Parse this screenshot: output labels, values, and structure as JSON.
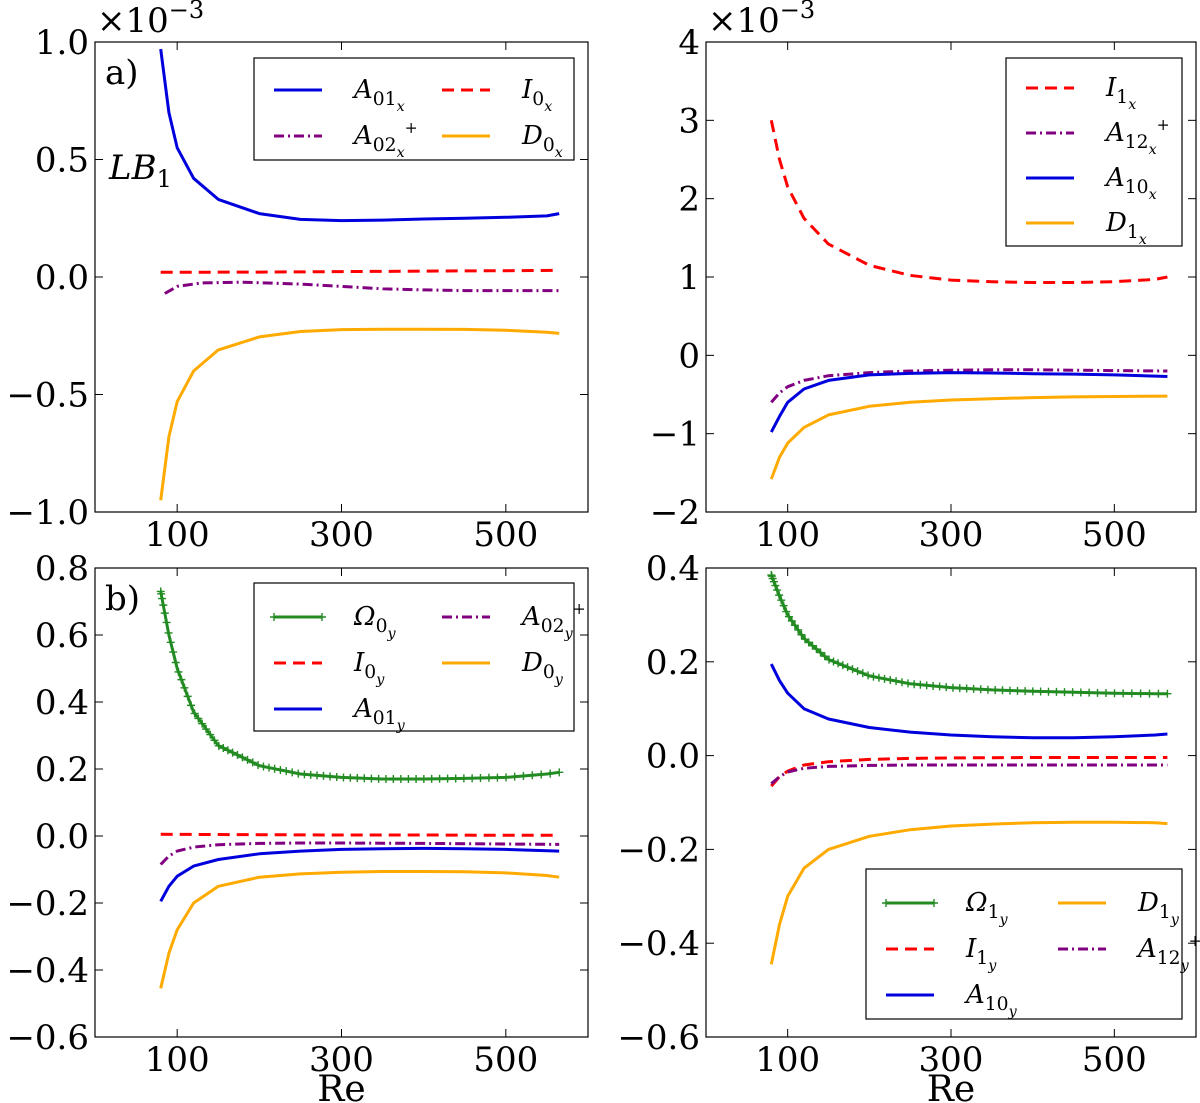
{
  "chart_data": [
    {
      "id": "top-left",
      "type": "line",
      "panel_label": "a)",
      "annotation": {
        "main": "LB",
        "sub": "1"
      },
      "multiplier": {
        "base": "×10",
        "exp": "−3"
      },
      "xlabel": "",
      "ylabel": "",
      "xlim": [
        0,
        600
      ],
      "ylim": [
        -1.0,
        1.0
      ],
      "xticks": [
        100,
        300,
        500
      ],
      "xtick_labels": [
        "100",
        "300",
        "500"
      ],
      "yticks": [
        1.0,
        0.5,
        0.0,
        -0.5,
        -1.0
      ],
      "ytick_labels": [
        "1.0",
        "0.5",
        "0.0",
        "−0.5",
        "−1.0"
      ],
      "legend_position": "top-right",
      "legend_columns": 2,
      "series": [
        {
          "key": "A01x",
          "main": "A",
          "sub": "01",
          "subsub": "x",
          "sup": "",
          "color": "#0000dd",
          "style": "solid",
          "x": [
            80,
            90,
            100,
            120,
            150,
            200,
            250,
            300,
            350,
            400,
            450,
            500,
            550,
            565
          ],
          "y": [
            0.97,
            0.7,
            0.55,
            0.42,
            0.33,
            0.27,
            0.245,
            0.24,
            0.242,
            0.247,
            0.25,
            0.254,
            0.26,
            0.27
          ]
        },
        {
          "key": "A02x",
          "main": "A",
          "sub": "02",
          "subsub": "x",
          "sup": "+",
          "color": "#800080",
          "style": "dashdot",
          "x": [
            85,
            100,
            130,
            180,
            250,
            300,
            350,
            400,
            450,
            500,
            565
          ],
          "y": [
            -0.07,
            -0.04,
            -0.025,
            -0.022,
            -0.03,
            -0.04,
            -0.05,
            -0.055,
            -0.058,
            -0.058,
            -0.058
          ]
        },
        {
          "key": "I0x",
          "main": "I",
          "sub": "0",
          "subsub": "x",
          "sup": "",
          "color": "#ff0000",
          "style": "dashed",
          "x": [
            80,
            200,
            300,
            400,
            500,
            565
          ],
          "y": [
            0.02,
            0.021,
            0.023,
            0.025,
            0.027,
            0.028
          ]
        },
        {
          "key": "D0x",
          "main": "D",
          "sub": "0",
          "subsub": "x",
          "sup": "",
          "color": "#ffaa00",
          "style": "solid",
          "x": [
            80,
            90,
            100,
            120,
            150,
            200,
            250,
            300,
            350,
            400,
            450,
            500,
            550,
            565
          ],
          "y": [
            -0.95,
            -0.68,
            -0.53,
            -0.4,
            -0.31,
            -0.255,
            -0.232,
            -0.224,
            -0.222,
            -0.222,
            -0.223,
            -0.227,
            -0.235,
            -0.24
          ]
        }
      ]
    },
    {
      "id": "top-right",
      "type": "line",
      "panel_label": "",
      "multiplier": {
        "base": "×10",
        "exp": "−3"
      },
      "xlabel": "",
      "ylabel": "",
      "xlim": [
        0,
        600
      ],
      "ylim": [
        -2,
        4
      ],
      "xticks": [
        100,
        300,
        500
      ],
      "xtick_labels": [
        "100",
        "300",
        "500"
      ],
      "yticks": [
        4,
        3,
        2,
        1,
        0,
        -1,
        -2
      ],
      "ytick_labels": [
        "4",
        "3",
        "2",
        "1",
        "0",
        "−1",
        "−2"
      ],
      "legend_position": "top-right",
      "legend_columns": 1,
      "series": [
        {
          "key": "I1x",
          "main": "I",
          "sub": "1",
          "subsub": "x",
          "sup": "",
          "color": "#ff0000",
          "style": "dashed",
          "x": [
            80,
            90,
            100,
            120,
            150,
            200,
            250,
            300,
            350,
            400,
            450,
            500,
            550,
            565
          ],
          "y": [
            3.0,
            2.5,
            2.15,
            1.75,
            1.42,
            1.15,
            1.02,
            0.96,
            0.94,
            0.93,
            0.93,
            0.94,
            0.97,
            1.0
          ]
        },
        {
          "key": "A12x",
          "main": "A",
          "sub": "12",
          "subsub": "x",
          "sup": "+",
          "color": "#800080",
          "style": "dashdot",
          "x": [
            80,
            90,
            100,
            120,
            150,
            200,
            250,
            300,
            350,
            400,
            450,
            500,
            565
          ],
          "y": [
            -0.6,
            -0.48,
            -0.4,
            -0.32,
            -0.26,
            -0.22,
            -0.2,
            -0.19,
            -0.185,
            -0.185,
            -0.19,
            -0.195,
            -0.2
          ]
        },
        {
          "key": "A10x",
          "main": "A",
          "sub": "10",
          "subsub": "x",
          "sup": "",
          "color": "#0000dd",
          "style": "solid",
          "x": [
            80,
            90,
            100,
            120,
            150,
            200,
            250,
            300,
            350,
            400,
            450,
            500,
            565
          ],
          "y": [
            -0.98,
            -0.78,
            -0.6,
            -0.43,
            -0.32,
            -0.25,
            -0.23,
            -0.22,
            -0.225,
            -0.235,
            -0.24,
            -0.25,
            -0.27
          ]
        },
        {
          "key": "D1x",
          "main": "D",
          "sub": "1",
          "subsub": "x",
          "sup": "",
          "color": "#ffaa00",
          "style": "solid",
          "x": [
            80,
            90,
            100,
            120,
            150,
            200,
            250,
            300,
            350,
            400,
            450,
            500,
            565
          ],
          "y": [
            -1.58,
            -1.3,
            -1.12,
            -0.92,
            -0.76,
            -0.65,
            -0.6,
            -0.57,
            -0.555,
            -0.54,
            -0.53,
            -0.525,
            -0.52
          ]
        }
      ]
    },
    {
      "id": "bottom-left",
      "type": "line",
      "panel_label": "b)",
      "xlabel": "Re",
      "ylabel": "",
      "xlim": [
        0,
        600
      ],
      "ylim": [
        -0.6,
        0.8
      ],
      "xticks": [
        100,
        300,
        500
      ],
      "xtick_labels": [
        "100",
        "300",
        "500"
      ],
      "yticks": [
        0.8,
        0.6,
        0.4,
        0.2,
        0.0,
        -0.2,
        -0.4,
        -0.6
      ],
      "ytick_labels": [
        "0.8",
        "0.6",
        "0.4",
        "0.2",
        "0.0",
        "−0.2",
        "−0.4",
        "−0.6"
      ],
      "legend_position": "top-right",
      "legend_columns": 2,
      "series": [
        {
          "key": "Om0y",
          "main": "Ω",
          "sub": "0",
          "subsub": "y",
          "sup": "",
          "color": "#228b22",
          "style": "solid",
          "markers": true,
          "x": [
            80,
            90,
            100,
            120,
            150,
            200,
            250,
            300,
            350,
            400,
            450,
            500,
            550,
            565
          ],
          "y": [
            0.73,
            0.6,
            0.5,
            0.37,
            0.27,
            0.21,
            0.185,
            0.175,
            0.17,
            0.17,
            0.172,
            0.175,
            0.185,
            0.19
          ]
        },
        {
          "key": "I0y",
          "main": "I",
          "sub": "0",
          "subsub": "y",
          "sup": "",
          "color": "#ff0000",
          "style": "dashed",
          "x": [
            80,
            200,
            300,
            400,
            500,
            565
          ],
          "y": [
            0.005,
            0.004,
            0.003,
            0.003,
            0.002,
            0.002
          ]
        },
        {
          "key": "A01y",
          "main": "A",
          "sub": "01",
          "subsub": "y",
          "sup": "",
          "color": "#0000dd",
          "style": "solid",
          "x": [
            80,
            90,
            100,
            120,
            150,
            200,
            250,
            300,
            350,
            400,
            450,
            500,
            565
          ],
          "y": [
            -0.195,
            -0.15,
            -0.12,
            -0.09,
            -0.07,
            -0.053,
            -0.045,
            -0.04,
            -0.038,
            -0.037,
            -0.038,
            -0.04,
            -0.045
          ]
        },
        {
          "key": "A02y",
          "main": "A",
          "sub": "02",
          "subsub": "y",
          "sup": "+",
          "color": "#800080",
          "style": "dashdot",
          "x": [
            80,
            90,
            100,
            120,
            150,
            200,
            250,
            300,
            400,
            500,
            565
          ],
          "y": [
            -0.085,
            -0.06,
            -0.045,
            -0.033,
            -0.026,
            -0.022,
            -0.021,
            -0.021,
            -0.022,
            -0.024,
            -0.025
          ]
        },
        {
          "key": "D0y",
          "main": "D",
          "sub": "0",
          "subsub": "y",
          "sup": "",
          "color": "#ffaa00",
          "style": "solid",
          "x": [
            80,
            90,
            100,
            120,
            150,
            200,
            250,
            300,
            350,
            400,
            450,
            500,
            550,
            565
          ],
          "y": [
            -0.455,
            -0.35,
            -0.28,
            -0.2,
            -0.15,
            -0.123,
            -0.113,
            -0.108,
            -0.106,
            -0.106,
            -0.107,
            -0.11,
            -0.118,
            -0.123
          ]
        }
      ]
    },
    {
      "id": "bottom-right",
      "type": "line",
      "panel_label": "",
      "xlabel": "Re",
      "ylabel": "",
      "xlim": [
        0,
        600
      ],
      "ylim": [
        -0.6,
        0.4
      ],
      "xticks": [
        100,
        300,
        500
      ],
      "xtick_labels": [
        "100",
        "300",
        "500"
      ],
      "yticks": [
        0.4,
        0.2,
        0.0,
        -0.2,
        -0.4,
        -0.6
      ],
      "ytick_labels": [
        "0.4",
        "0.2",
        "0.0",
        "−0.2",
        "−0.4",
        "−0.6"
      ],
      "legend_position": "bottom-right",
      "legend_columns": 2,
      "series": [
        {
          "key": "Om1y",
          "main": "Ω",
          "sub": "1",
          "subsub": "y",
          "sup": "",
          "color": "#228b22",
          "style": "solid",
          "markers": true,
          "x": [
            80,
            90,
            100,
            120,
            150,
            200,
            250,
            300,
            350,
            400,
            450,
            500,
            550,
            565
          ],
          "y": [
            0.385,
            0.34,
            0.3,
            0.25,
            0.205,
            0.17,
            0.153,
            0.145,
            0.14,
            0.137,
            0.135,
            0.133,
            0.132,
            0.132
          ]
        },
        {
          "key": "I1y",
          "main": "I",
          "sub": "1",
          "subsub": "y",
          "sup": "",
          "color": "#ff0000",
          "style": "dashed",
          "x": [
            80,
            90,
            100,
            120,
            150,
            200,
            250,
            300,
            400,
            500,
            565
          ],
          "y": [
            -0.065,
            -0.045,
            -0.033,
            -0.02,
            -0.013,
            -0.008,
            -0.006,
            -0.005,
            -0.004,
            -0.004,
            -0.004
          ]
        },
        {
          "key": "A10y",
          "main": "A",
          "sub": "10",
          "subsub": "y",
          "sup": "",
          "color": "#0000dd",
          "style": "solid",
          "x": [
            80,
            90,
            100,
            120,
            150,
            200,
            250,
            300,
            350,
            400,
            450,
            500,
            550,
            565
          ],
          "y": [
            0.195,
            0.16,
            0.133,
            0.1,
            0.078,
            0.06,
            0.05,
            0.044,
            0.04,
            0.038,
            0.038,
            0.04,
            0.044,
            0.046
          ]
        },
        {
          "key": "D1y",
          "main": "D",
          "sub": "1",
          "subsub": "y",
          "sup": "",
          "color": "#ffaa00",
          "style": "solid",
          "x": [
            80,
            90,
            100,
            120,
            150,
            200,
            250,
            300,
            350,
            400,
            450,
            500,
            550,
            565
          ],
          "y": [
            -0.445,
            -0.36,
            -0.3,
            -0.24,
            -0.2,
            -0.172,
            -0.158,
            -0.15,
            -0.146,
            -0.143,
            -0.142,
            -0.142,
            -0.143,
            -0.145
          ]
        },
        {
          "key": "A12y",
          "main": "A",
          "sub": "12",
          "subsub": "y",
          "sup": "+",
          "color": "#800080",
          "style": "dashdot",
          "x": [
            80,
            90,
            100,
            120,
            150,
            200,
            250,
            300,
            400,
            500,
            565
          ],
          "y": [
            -0.06,
            -0.045,
            -0.035,
            -0.027,
            -0.023,
            -0.021,
            -0.02,
            -0.02,
            -0.02,
            -0.02,
            -0.02
          ]
        }
      ]
    }
  ]
}
